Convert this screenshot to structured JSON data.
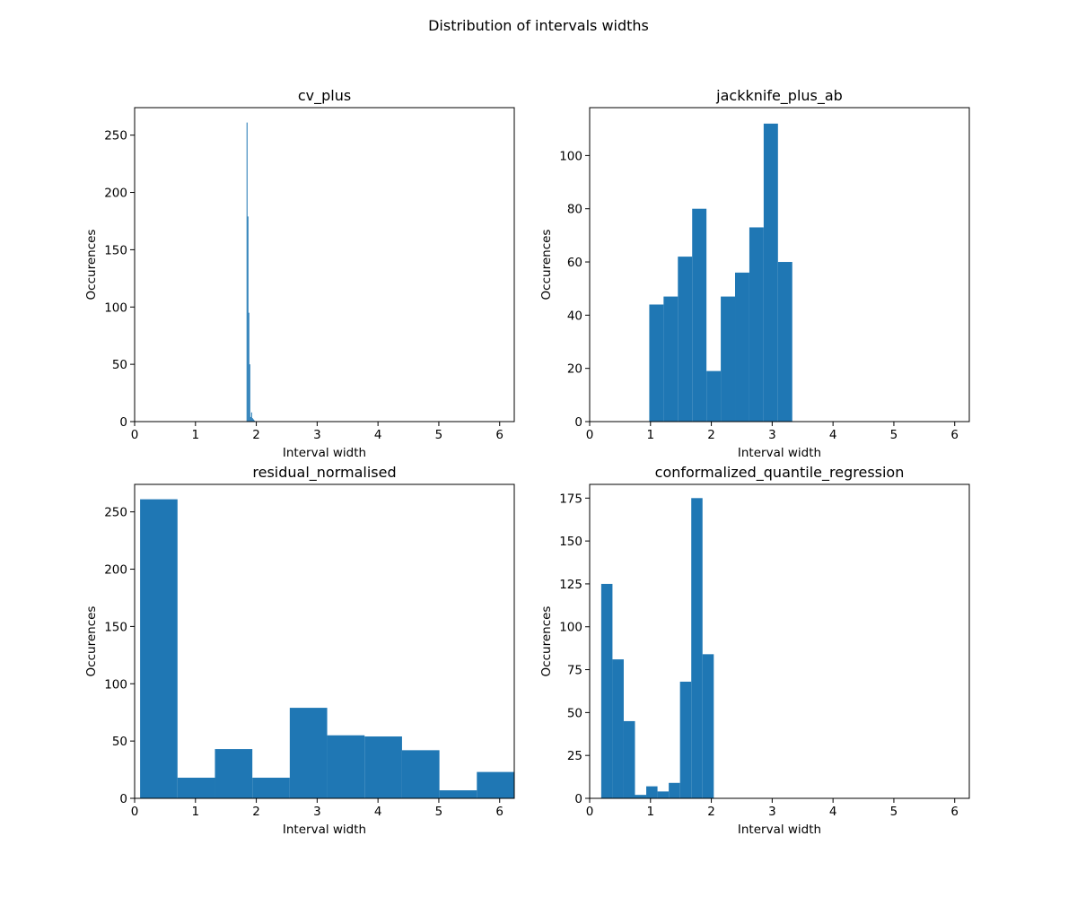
{
  "figure": {
    "title": "Distribution of intervals widths"
  },
  "chart_data": [
    {
      "type": "bar",
      "title": "cv_plus",
      "xlabel": "Interval width",
      "ylabel": "Occurences",
      "xlim": [
        0,
        6.24
      ],
      "ylim": [
        0,
        274
      ],
      "xticks": [
        0,
        1,
        2,
        3,
        4,
        5,
        6
      ],
      "yticks": [
        0,
        50,
        100,
        150,
        200,
        250
      ],
      "bin_edges": [
        1.84,
        1.855,
        1.87,
        1.885,
        1.9,
        1.915,
        1.93,
        1.945,
        1.96,
        1.975
      ],
      "values": [
        261,
        179,
        95,
        50,
        4,
        8,
        3,
        2,
        1
      ],
      "color": "#1f77b4"
    },
    {
      "type": "bar",
      "title": "jackknife_plus_ab",
      "xlabel": "Interval width",
      "ylabel": "Occurences",
      "xlim": [
        0,
        6.24
      ],
      "ylim": [
        0,
        118
      ],
      "xticks": [
        0,
        1,
        2,
        3,
        4,
        5,
        6
      ],
      "yticks": [
        0,
        20,
        40,
        60,
        80,
        100
      ],
      "bin_edges": [
        0.98,
        1.215,
        1.45,
        1.685,
        1.92,
        2.155,
        2.39,
        2.625,
        2.86,
        3.095,
        3.33
      ],
      "values": [
        44,
        47,
        62,
        80,
        19,
        47,
        56,
        73,
        112,
        60
      ],
      "color": "#1f77b4"
    },
    {
      "type": "bar",
      "title": "residual_normalised",
      "xlabel": "Interval width",
      "ylabel": "Occurences",
      "xlim": [
        0,
        6.24
      ],
      "ylim": [
        0,
        274
      ],
      "xticks": [
        0,
        1,
        2,
        3,
        4,
        5,
        6
      ],
      "yticks": [
        0,
        50,
        100,
        150,
        200,
        250
      ],
      "bin_edges": [
        0.09,
        0.705,
        1.32,
        1.935,
        2.55,
        3.165,
        3.78,
        4.395,
        5.01,
        5.625,
        6.24
      ],
      "values": [
        261,
        18,
        43,
        18,
        79,
        55,
        54,
        42,
        7,
        23
      ],
      "color": "#1f77b4"
    },
    {
      "type": "bar",
      "title": "conformalized_quantile_regression",
      "xlabel": "Interval width",
      "ylabel": "Occurences",
      "xlim": [
        0,
        6.24
      ],
      "ylim": [
        0,
        183
      ],
      "xticks": [
        0,
        1,
        2,
        3,
        4,
        5,
        6
      ],
      "yticks": [
        0,
        25,
        50,
        75,
        100,
        125,
        150,
        175
      ],
      "bin_edges": [
        0.19,
        0.375,
        0.56,
        0.745,
        0.93,
        1.115,
        1.3,
        1.485,
        1.67,
        1.855,
        2.04
      ],
      "values": [
        125,
        81,
        45,
        2,
        7,
        4,
        9,
        68,
        175,
        84
      ],
      "color": "#1f77b4"
    }
  ]
}
